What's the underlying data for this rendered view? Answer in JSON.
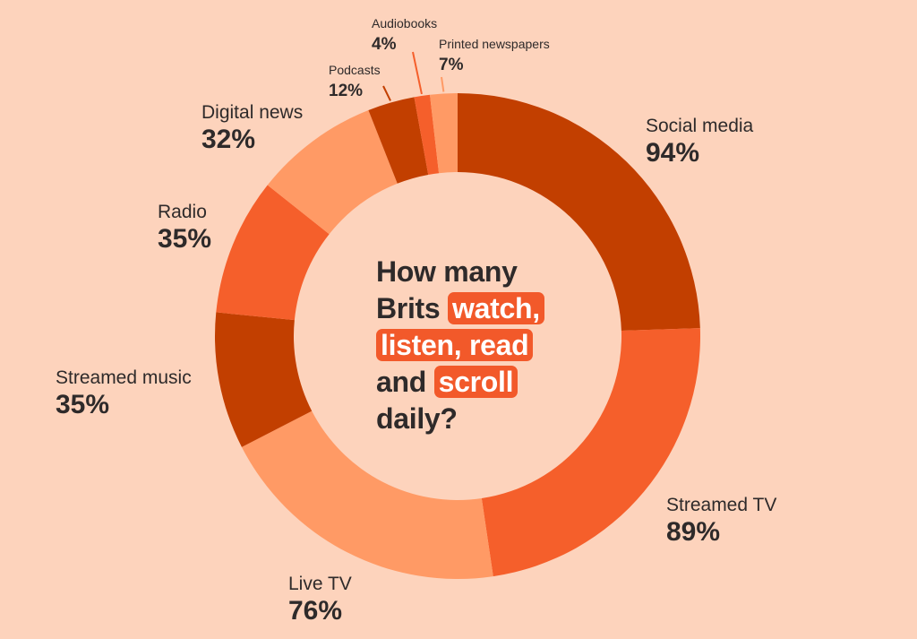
{
  "chart_data": {
    "type": "pie",
    "variant": "donut",
    "title": {
      "l1": "How many",
      "l2a": "Brits ",
      "l2b": "watch,",
      "l3": "listen, read",
      "l4a": "and ",
      "l4b": "scroll",
      "l5": "daily?"
    },
    "unit": "%",
    "slices": [
      {
        "label": "Social media",
        "value": 94,
        "display": "94%",
        "color": "#C23F00"
      },
      {
        "label": "Streamed TV",
        "value": 89,
        "display": "89%",
        "color": "#F55F2B"
      },
      {
        "label": "Live TV",
        "value": 76,
        "display": "76%",
        "color": "#FF9A65"
      },
      {
        "label": "Streamed music",
        "value": 35,
        "display": "35%",
        "color": "#C23F00"
      },
      {
        "label": "Radio",
        "value": 35,
        "display": "35%",
        "color": "#F55F2B"
      },
      {
        "label": "Digital news",
        "value": 32,
        "display": "32%",
        "color": "#FF9A65"
      },
      {
        "label": "Podcasts",
        "value": 12,
        "display": "12%",
        "color": "#C23F00"
      },
      {
        "label": "Audiobooks",
        "value": 4,
        "display": "4%",
        "color": "#F55F2B"
      },
      {
        "label": "Printed newspapers",
        "value": 7,
        "display": "7%",
        "color": "#FF9A65"
      }
    ]
  }
}
